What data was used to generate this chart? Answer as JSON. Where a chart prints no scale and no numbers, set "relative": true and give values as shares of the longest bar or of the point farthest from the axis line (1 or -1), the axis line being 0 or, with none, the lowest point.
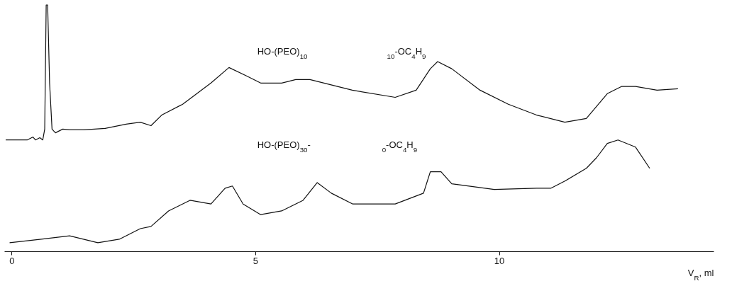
{
  "chart_data": {
    "type": "line",
    "relative": true,
    "xlabel": "V$_{R}$, ml",
    "xlim": [
      -0.15,
      14.4
    ],
    "xticks": [
      0,
      5,
      10
    ],
    "grid": false,
    "marker": "none",
    "series": [
      {
        "color": "#111111",
        "x": [
          -0.12,
          0.32,
          0.44,
          0.49,
          0.58,
          0.64,
          0.68,
          0.71,
          0.74,
          0.78,
          0.83,
          0.9,
          1.05,
          1.19,
          1.48,
          1.92,
          2.35,
          2.64,
          2.86,
          3.08,
          3.51,
          4.09,
          4.46,
          4.82,
          5.11,
          5.54,
          5.83,
          6.12,
          6.99,
          7.87,
          8.3,
          8.59,
          8.74,
          9.03,
          9.61,
          10.19,
          10.77,
          11.35,
          11.79,
          12.22,
          12.51,
          12.8,
          13.24,
          13.67
        ],
        "values": [
          0.452,
          0.452,
          0.464,
          0.452,
          0.461,
          0.452,
          0.496,
          1.0,
          1.0,
          0.683,
          0.496,
          0.481,
          0.496,
          0.493,
          0.493,
          0.499,
          0.516,
          0.524,
          0.51,
          0.553,
          0.597,
          0.683,
          0.746,
          0.712,
          0.683,
          0.683,
          0.697,
          0.697,
          0.654,
          0.625,
          0.654,
          0.741,
          0.77,
          0.741,
          0.654,
          0.597,
          0.553,
          0.524,
          0.539,
          0.64,
          0.669,
          0.669,
          0.654,
          0.66
        ]
      },
      {
        "color": "#111111",
        "x": [
          -0.04,
          0.61,
          1.19,
          1.77,
          2.21,
          2.64,
          2.86,
          3.22,
          3.66,
          4.09,
          4.38,
          4.53,
          4.75,
          5.11,
          5.54,
          5.98,
          6.27,
          6.56,
          7.0,
          7.87,
          8.45,
          8.59,
          8.81,
          9.03,
          9.9,
          10.77,
          11.06,
          11.35,
          11.79,
          12.0,
          12.22,
          12.44,
          12.8,
          13.09
        ],
        "values": [
          0.035,
          0.049,
          0.063,
          0.035,
          0.049,
          0.092,
          0.101,
          0.164,
          0.207,
          0.192,
          0.256,
          0.265,
          0.192,
          0.149,
          0.164,
          0.207,
          0.279,
          0.236,
          0.192,
          0.192,
          0.236,
          0.323,
          0.323,
          0.274,
          0.251,
          0.256,
          0.256,
          0.285,
          0.337,
          0.38,
          0.438,
          0.452,
          0.423,
          0.337
        ]
      }
    ],
    "annotations": [
      "HO-(PEO)$_{10}$",
      "$_{10}$-OC$_{4}$H$_{9}$",
      "HO-(PEO)$_{30}$-",
      "$_{0}$-OC$_{4}$H$_{9}$"
    ]
  }
}
